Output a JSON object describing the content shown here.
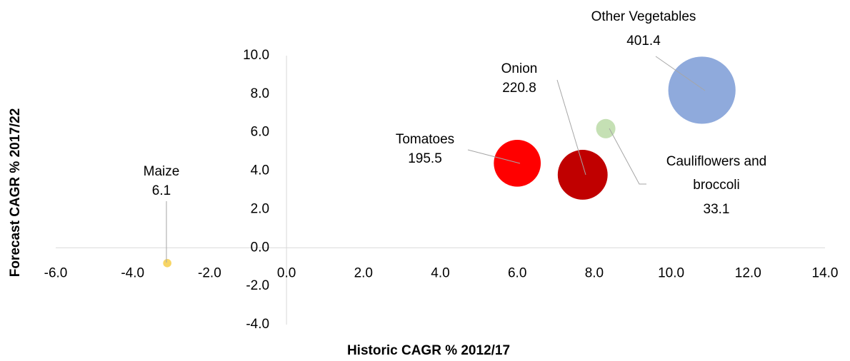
{
  "chart_data": {
    "type": "bubble",
    "xlabel": "Historic CAGR % 2012/17",
    "ylabel": "Forecast CAGR %  2017/22",
    "series": [
      {
        "name": "Maize",
        "color": "#f7d565",
        "x": [
          -3.1
        ],
        "values": [
          -0.8
        ],
        "sizes": [
          6.1
        ],
        "size_labels": [
          "6.1"
        ]
      },
      {
        "name": "Tomatoes",
        "color": "#ff0000",
        "x": [
          6.0
        ],
        "values": [
          4.4
        ],
        "sizes": [
          195.5
        ],
        "size_labels": [
          "195.5"
        ]
      },
      {
        "name": "Onion",
        "color": "#c00000",
        "x": [
          7.7
        ],
        "values": [
          3.8
        ],
        "sizes": [
          220.8
        ],
        "size_labels": [
          "220.8"
        ]
      },
      {
        "name": "Cauliflowers and broccoli",
        "color": "#c5e0b4",
        "x": [
          8.3
        ],
        "values": [
          6.2
        ],
        "sizes": [
          33.1
        ],
        "size_labels": [
          "33.1"
        ]
      },
      {
        "name": "Other Vegetables",
        "color": "#8faadc",
        "x": [
          10.8
        ],
        "values": [
          8.2
        ],
        "sizes": [
          401.4
        ],
        "size_labels": [
          "401.4"
        ]
      }
    ],
    "xlim": [
      -6,
      14
    ],
    "xticks": [
      {
        "value": -6,
        "label": "-6.0"
      },
      {
        "value": -4,
        "label": "-4.0"
      },
      {
        "value": -2,
        "label": "-2.0"
      },
      {
        "value": 0,
        "label": "0.0"
      },
      {
        "value": 2,
        "label": "2.0"
      },
      {
        "value": 4,
        "label": "4.0"
      },
      {
        "value": 6,
        "label": "6.0"
      },
      {
        "value": 8,
        "label": "8.0"
      },
      {
        "value": 10,
        "label": "10.0"
      },
      {
        "value": 12,
        "label": "12.0"
      },
      {
        "value": 14,
        "label": "14.0"
      }
    ],
    "ylim": [
      -4,
      10
    ],
    "yticks": [
      {
        "value": -4,
        "label": "-4.0"
      },
      {
        "value": -2,
        "label": "-2.0"
      },
      {
        "value": 0,
        "label": "0.0"
      },
      {
        "value": 2,
        "label": "2.0"
      },
      {
        "value": 4,
        "label": "4.0"
      },
      {
        "value": 6,
        "label": "6.0"
      },
      {
        "value": 8,
        "label": "8.0"
      },
      {
        "value": 10,
        "label": "10.0"
      }
    ],
    "grid": false
  }
}
